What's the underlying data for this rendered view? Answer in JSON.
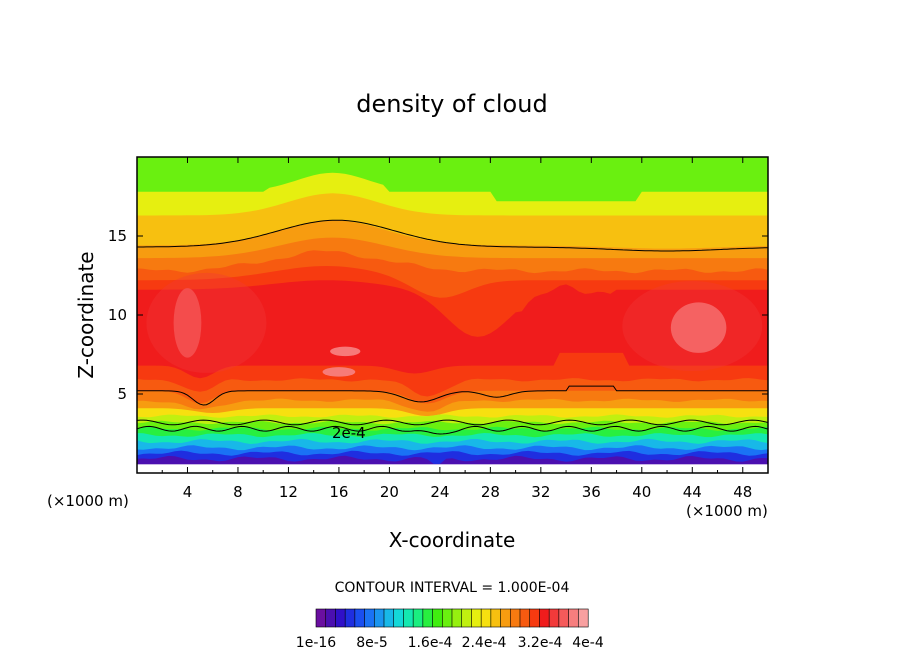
{
  "chart_data": {
    "type": "heatmap",
    "title": "density of cloud",
    "xlabel": "X-coordinate",
    "ylabel": "Z-coordinate",
    "x_unit": "(×1000 m)",
    "z_unit": "(×1000 m)",
    "xlim": [
      0,
      50
    ],
    "ylim": [
      0,
      20
    ],
    "x_ticks": [
      4,
      8,
      12,
      16,
      20,
      24,
      28,
      32,
      36,
      40,
      44,
      48
    ],
    "y_ticks": [
      5,
      10,
      15
    ],
    "contour_interval": "CONTOUR INTERVAL = 1.000E-04",
    "contour_label": "2e-4",
    "colorbar": {
      "labels": [
        "1e-16",
        "8e-5",
        "1.6e-4",
        "2.4e-4",
        "3.2e-4",
        "4e-4"
      ],
      "colors": [
        "#6a0fa0",
        "#4b0fb0",
        "#3010c8",
        "#1f2ee0",
        "#1a4ef0",
        "#1a72f5",
        "#1a95f0",
        "#18b8e8",
        "#14d8d8",
        "#14e8b0",
        "#1aef80",
        "#28ef40",
        "#40ee10",
        "#6af010",
        "#96f010",
        "#c0f010",
        "#e6ef10",
        "#f7e010",
        "#f7c010",
        "#f79c10",
        "#f77a10",
        "#f75a10",
        "#f73a10",
        "#f01c1c",
        "#f23a3a",
        "#f55a5a",
        "#f77e7e",
        "#f8a0a0"
      ]
    },
    "field_note": "cloud density field; bands by height"
  }
}
